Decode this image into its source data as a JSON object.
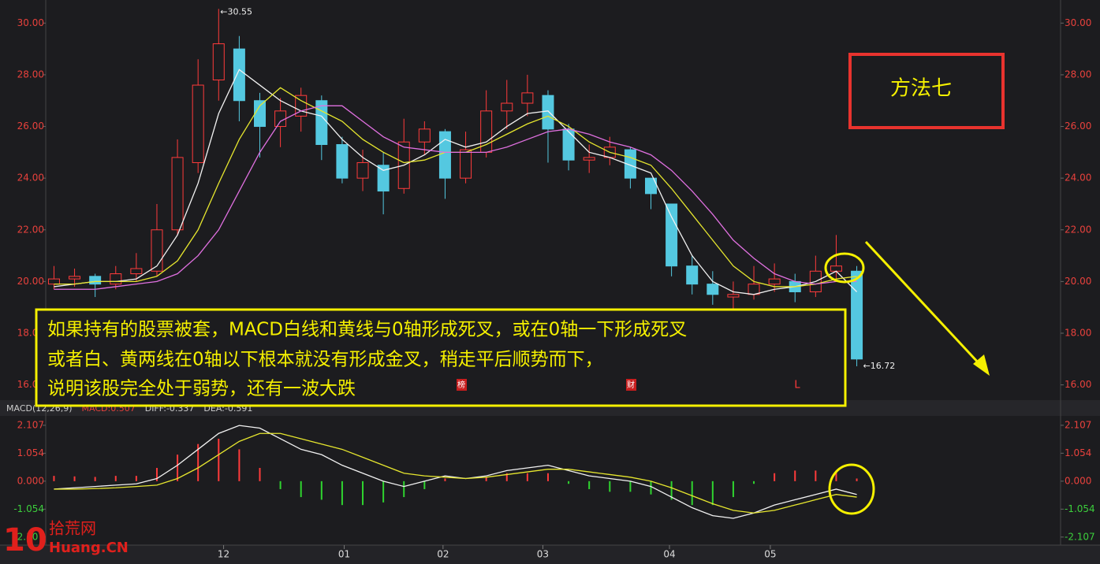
{
  "chart_data": [
    {
      "type": "candlestick",
      "up_color": "#ff3b3b",
      "down_color": "#54c8e0",
      "open": [
        19.9,
        20.1,
        20.2,
        19.9,
        20.3,
        20.4,
        22.0,
        24.6,
        27.8,
        29.0,
        27.0,
        26.0,
        26.4,
        27.0,
        25.3,
        24.0,
        24.5,
        23.6,
        25.4,
        25.8,
        24.0,
        25.0,
        26.6,
        26.9,
        27.2,
        25.9,
        24.7,
        24.8,
        25.1,
        24.0,
        23.0,
        20.6,
        19.9,
        19.4,
        19.5,
        19.9,
        20.0,
        19.6,
        20.4,
        20.4
      ],
      "high": [
        20.6,
        20.5,
        20.3,
        20.6,
        21.1,
        23.0,
        25.5,
        28.6,
        30.55,
        29.5,
        27.3,
        27.1,
        27.5,
        27.2,
        25.6,
        25.1,
        25.0,
        26.3,
        26.2,
        25.9,
        25.8,
        27.4,
        27.8,
        28.0,
        27.4,
        26.1,
        25.3,
        25.6,
        25.2,
        24.0,
        23.0,
        21.0,
        20.4,
        20.0,
        20.6,
        20.7,
        20.3,
        21.0,
        21.8,
        20.6
      ],
      "low": [
        19.7,
        19.8,
        19.4,
        19.7,
        20.0,
        20.2,
        21.8,
        24.2,
        27.0,
        26.2,
        24.8,
        25.2,
        25.8,
        24.7,
        23.8,
        23.5,
        22.6,
        23.4,
        24.9,
        23.2,
        23.8,
        24.8,
        25.9,
        26.4,
        24.6,
        24.3,
        24.2,
        24.5,
        23.6,
        22.8,
        20.2,
        19.5,
        19.1,
        18.9,
        19.3,
        19.6,
        19.2,
        19.4,
        20.1,
        16.72
      ],
      "close": [
        20.1,
        20.2,
        19.9,
        20.3,
        20.5,
        22.0,
        24.8,
        27.6,
        29.2,
        27.0,
        26.0,
        26.6,
        27.2,
        25.3,
        24.0,
        24.6,
        23.5,
        25.4,
        25.9,
        24.0,
        25.1,
        26.6,
        26.9,
        27.3,
        25.9,
        24.7,
        24.8,
        25.2,
        24.0,
        23.4,
        20.6,
        19.9,
        19.5,
        19.5,
        19.9,
        20.1,
        19.6,
        20.4,
        20.6,
        17.0
      ],
      "series": [
        {
          "color": "#f2f2f2",
          "values": [
            19.8,
            19.9,
            20.0,
            20.0,
            20.1,
            20.6,
            21.8,
            23.8,
            26.5,
            28.2,
            27.6,
            27.0,
            26.6,
            26.4,
            25.5,
            24.8,
            24.3,
            24.5,
            24.9,
            25.5,
            25.2,
            25.4,
            26.0,
            26.5,
            26.6,
            25.8,
            25.0,
            24.8,
            24.5,
            24.2,
            22.5,
            21.0,
            20.0,
            19.6,
            19.5,
            19.7,
            19.8,
            20.0,
            20.4,
            19.6
          ]
        },
        {
          "color": "#e6e62e",
          "values": [
            19.9,
            19.9,
            20.0,
            20.0,
            20.0,
            20.2,
            20.8,
            22.0,
            23.8,
            25.5,
            26.8,
            27.5,
            27.0,
            26.6,
            26.2,
            25.5,
            25.0,
            24.6,
            24.7,
            25.0,
            25.0,
            25.3,
            25.7,
            26.1,
            26.4,
            26.0,
            25.4,
            25.0,
            24.8,
            24.5,
            23.6,
            22.6,
            21.6,
            20.6,
            20.0,
            19.8,
            19.8,
            19.9,
            20.1,
            20.2
          ]
        },
        {
          "color": "#e070e0",
          "values": [
            19.7,
            19.7,
            19.7,
            19.8,
            19.9,
            20.0,
            20.3,
            21.0,
            22.0,
            23.5,
            25.0,
            26.2,
            26.6,
            26.8,
            26.8,
            26.2,
            25.6,
            25.2,
            25.1,
            25.0,
            25.0,
            25.0,
            25.2,
            25.5,
            25.8,
            25.9,
            25.7,
            25.4,
            25.2,
            24.9,
            24.3,
            23.5,
            22.6,
            21.6,
            20.9,
            20.3,
            20.0,
            19.9,
            20.0,
            20.0
          ]
        }
      ],
      "xlim": [
        -0.4,
        48.9
      ],
      "ylim": [
        15.5,
        30.65
      ],
      "yticks": [
        {
          "value": 16,
          "label": "16.00"
        },
        {
          "value": 18,
          "label": "18.00"
        },
        {
          "value": 20,
          "label": "20.00"
        },
        {
          "value": 22,
          "label": "22.00"
        },
        {
          "value": 24,
          "label": "24.00"
        },
        {
          "value": 26,
          "label": "26.00"
        },
        {
          "value": 28,
          "label": "28.00"
        },
        {
          "value": 30,
          "label": "30.00"
        }
      ],
      "high_label": "←30.55",
      "low_label": "←16.72"
    },
    {
      "type": "macd",
      "header": [
        "MACD(12,26,9)",
        "MACD:0.507",
        "DIFF:-0.337",
        "DEA:-0.591"
      ],
      "header_colors": [
        "#cccccc",
        "#e8413c",
        "#cccccc",
        "#cccccc"
      ],
      "up_color": "#ff3b3b",
      "down_color": "#2fd42f",
      "values": [
        0.2,
        0.18,
        0.16,
        0.2,
        0.2,
        0.5,
        1.0,
        1.4,
        1.6,
        1.2,
        0.5,
        -0.3,
        -0.6,
        -0.7,
        -0.9,
        -0.9,
        -0.8,
        -0.6,
        -0.3,
        0.1,
        0.0,
        0.15,
        0.3,
        0.3,
        0.3,
        -0.1,
        -0.3,
        -0.4,
        -0.4,
        -0.5,
        -0.7,
        -0.9,
        -0.9,
        -0.6,
        -0.1,
        0.3,
        0.4,
        0.4,
        0.4,
        0.1
      ],
      "series": [
        {
          "color": "#f2f2f2",
          "values": [
            -0.3,
            -0.25,
            -0.2,
            -0.15,
            -0.1,
            0.1,
            0.6,
            1.2,
            1.8,
            2.1,
            2.0,
            1.6,
            1.2,
            1.0,
            0.6,
            0.3,
            0.0,
            -0.2,
            0.0,
            0.2,
            0.1,
            0.2,
            0.4,
            0.5,
            0.6,
            0.4,
            0.2,
            0.1,
            0.0,
            -0.2,
            -0.6,
            -1.0,
            -1.3,
            -1.4,
            -1.2,
            -0.9,
            -0.7,
            -0.5,
            -0.3,
            -0.5
          ]
        },
        {
          "color": "#e6e62e",
          "values": [
            -0.3,
            -0.3,
            -0.28,
            -0.25,
            -0.2,
            -0.15,
            0.1,
            0.5,
            1.0,
            1.5,
            1.8,
            1.8,
            1.6,
            1.4,
            1.2,
            0.9,
            0.6,
            0.3,
            0.2,
            0.15,
            0.1,
            0.15,
            0.25,
            0.35,
            0.45,
            0.45,
            0.35,
            0.25,
            0.15,
            0.0,
            -0.25,
            -0.55,
            -0.85,
            -1.1,
            -1.2,
            -1.1,
            -0.9,
            -0.7,
            -0.5,
            -0.6
          ]
        }
      ],
      "xlim": [
        -0.4,
        48.9
      ],
      "ylim": [
        -2.35,
        2.46
      ],
      "yticks": [
        -2.107,
        -1.054,
        {
          "value": 0,
          "label": "0.000"
        },
        1.054,
        2.107
      ],
      "xticks": [
        {
          "value": 8.24,
          "label": "12"
        },
        {
          "value": 14.1,
          "label": "01"
        },
        {
          "value": 18.9,
          "label": "02"
        },
        {
          "value": 23.75,
          "label": "03"
        },
        {
          "value": 29.9,
          "label": "04"
        },
        {
          "value": 34.8,
          "label": "05"
        }
      ]
    }
  ],
  "method_title": "方法七",
  "note_lines": [
    "如果持有的股票被套，MACD白线和黄线与0轴形成死叉，或在0轴一下形成死叉",
    "或者白、黄两线在0轴以下根本就没有形成金叉，稍走平后顺势而下，",
    "说明该股完全处于弱势，还有一波大跌"
  ],
  "markers": [
    "榜",
    "财",
    "L"
  ],
  "watermark": [
    "10",
    "拾荒网",
    "Huang.CN"
  ]
}
